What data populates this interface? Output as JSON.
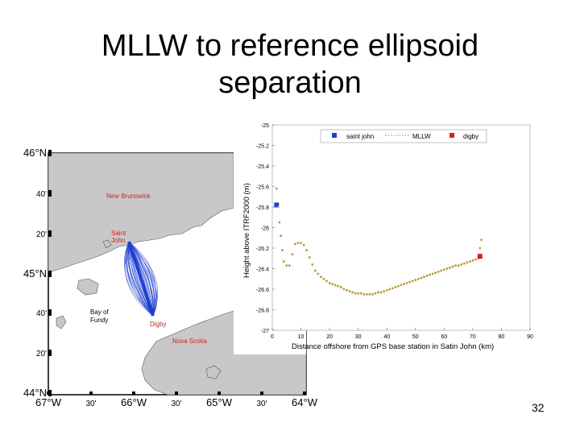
{
  "slide": {
    "title_line1": "MLLW to reference ellipsoid",
    "title_line2": "separation",
    "page_number": "32"
  },
  "map": {
    "lat_labels": [
      "46°N",
      "40'",
      "20'",
      "45°N",
      "40'",
      "20'",
      "44°N"
    ],
    "lon_labels": [
      "67°W",
      "30'",
      "66°W",
      "30'",
      "65°W",
      "30'",
      "64°W"
    ],
    "place_labels": {
      "new_brunswick": "New Brunswick",
      "saint_john_line1": "Saint",
      "saint_john_line2": "John",
      "bay_line1": "Bay of",
      "bay_line2": "Fundy",
      "digby": "Digby",
      "nova_scotia": "Nova Scotia"
    },
    "colors": {
      "land": "#c8c8c8",
      "water": "#ffffff",
      "tracks": "#1f3fd0",
      "labels": "#d42020"
    }
  },
  "chart_data": {
    "type": "scatter",
    "title": "",
    "xlabel": "Distance offshore from GPS base station in Satin John (km)",
    "ylabel": "Height above ITRF2000 (m)",
    "xlim": [
      0,
      90
    ],
    "ylim": [
      -27,
      -25
    ],
    "xticks": [
      "0",
      "10",
      "20",
      "30",
      "40",
      "50",
      "60",
      "70",
      "80",
      "90"
    ],
    "yticks": [
      "-25",
      "-25.2",
      "-25.4",
      "-25.6",
      "-25.8",
      "-26",
      "-26.2",
      "-26.4",
      "-26.6",
      "-26.8",
      "-27"
    ],
    "legend_position": "top",
    "series": [
      {
        "name": "saint john",
        "color": "#1f3fd0",
        "marker": "square",
        "x": [
          1.5
        ],
        "y": [
          -25.78
        ]
      },
      {
        "name": "MLLW",
        "color": "#b89a3a",
        "marker": "dot",
        "x": [
          1.5,
          2,
          2.5,
          3,
          3.5,
          4,
          5,
          6,
          7,
          8,
          9,
          10,
          11,
          12,
          13,
          14,
          15,
          16,
          17,
          18,
          19,
          20,
          21,
          22,
          23,
          24,
          25,
          26,
          27,
          28,
          29,
          30,
          31,
          32,
          33,
          34,
          35,
          36,
          37,
          38,
          39,
          40,
          41,
          42,
          43,
          44,
          45,
          46,
          47,
          48,
          49,
          50,
          51,
          52,
          53,
          54,
          55,
          56,
          57,
          58,
          59,
          60,
          61,
          62,
          63,
          64,
          65,
          66,
          67,
          68,
          69,
          70,
          71,
          72,
          72.5,
          73
        ],
        "y": [
          -25.62,
          -25.8,
          -25.95,
          -26.08,
          -26.22,
          -26.33,
          -26.37,
          -26.37,
          -26.26,
          -26.16,
          -26.15,
          -26.15,
          -26.17,
          -26.22,
          -26.29,
          -26.36,
          -26.42,
          -26.45,
          -26.48,
          -26.5,
          -26.52,
          -26.54,
          -26.55,
          -26.56,
          -26.57,
          -26.58,
          -26.6,
          -26.61,
          -26.62,
          -26.63,
          -26.64,
          -26.64,
          -26.64,
          -26.65,
          -26.65,
          -26.65,
          -26.65,
          -26.64,
          -26.63,
          -26.63,
          -26.62,
          -26.61,
          -26.6,
          -26.59,
          -26.58,
          -26.57,
          -26.56,
          -26.55,
          -26.54,
          -26.53,
          -26.52,
          -26.51,
          -26.5,
          -26.49,
          -26.48,
          -26.47,
          -26.46,
          -26.45,
          -26.44,
          -26.43,
          -26.42,
          -26.41,
          -26.4,
          -26.39,
          -26.38,
          -26.37,
          -26.37,
          -26.36,
          -26.35,
          -26.34,
          -26.33,
          -26.32,
          -26.31,
          -26.3,
          -26.2,
          -26.12
        ]
      },
      {
        "name": "digby",
        "color": "#d42020",
        "marker": "square",
        "x": [
          72.5
        ],
        "y": [
          -26.28
        ]
      }
    ]
  }
}
